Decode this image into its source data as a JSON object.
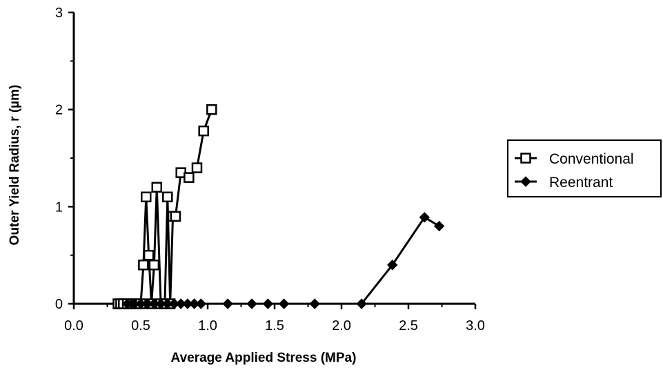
{
  "chart_data": {
    "type": "line",
    "xlabel": "Average Applied Stress  (MPa)",
    "ylabel": "Outer Yield Radius, r  (µm)",
    "xlim": [
      0.0,
      3.0
    ],
    "ylim": [
      0,
      3
    ],
    "x_ticks": [
      "0.0",
      "0.5",
      "1.0",
      "1.5",
      "2.0",
      "2.5",
      "3.0"
    ],
    "y_ticks": [
      "0",
      "1",
      "2",
      "3"
    ],
    "grid": false,
    "legend_position": "right",
    "series": [
      {
        "name": "Conventional",
        "marker": "open-square",
        "x": [
          0.33,
          0.35,
          0.37,
          0.4,
          0.43,
          0.46,
          0.5,
          0.52,
          0.54,
          0.56,
          0.58,
          0.6,
          0.62,
          0.65,
          0.68,
          0.7,
          0.72,
          0.74,
          0.76,
          0.8,
          0.86,
          0.92,
          0.97,
          1.03
        ],
        "values": [
          0,
          0,
          0,
          0,
          0,
          0,
          0,
          0.4,
          1.1,
          0.5,
          0,
          0.4,
          1.2,
          0,
          0,
          1.1,
          0,
          0.9,
          0.9,
          1.35,
          1.3,
          1.4,
          1.78,
          2.0
        ]
      },
      {
        "name": "Reentrant",
        "marker": "filled-diamond",
        "x": [
          0.4,
          0.45,
          0.5,
          0.55,
          0.6,
          0.65,
          0.7,
          0.75,
          0.8,
          0.85,
          0.9,
          0.95,
          1.15,
          1.33,
          1.45,
          1.57,
          1.8,
          2.15,
          2.38,
          2.62,
          2.73
        ],
        "values": [
          0,
          0,
          0,
          0,
          0,
          0,
          0,
          0,
          0,
          0,
          0,
          0,
          0,
          0,
          0,
          0,
          0,
          0,
          0.4,
          0.89,
          0.8
        ]
      }
    ]
  }
}
